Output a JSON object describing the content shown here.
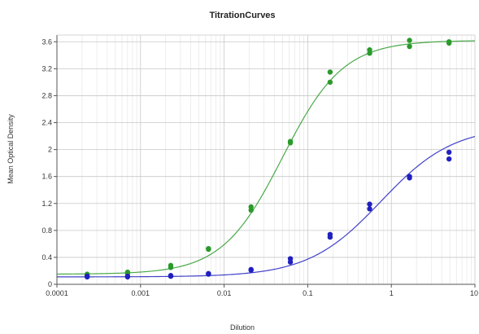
{
  "chart_data": {
    "type": "scatter",
    "title": "TitrationCurves",
    "xlabel": "Dilution",
    "ylabel": "Mean Optical Density",
    "xscale": "log",
    "xlim": [
      0.0001,
      10
    ],
    "ylim": [
      0,
      3.7
    ],
    "x_tick_labels": [
      "0.0001",
      "0.001",
      "0.01",
      "0.1",
      "1",
      "10"
    ],
    "y_tick_labels": [
      "0",
      "0.4",
      "0.8",
      "1.2",
      "1.6",
      "2",
      "2.4",
      "2.8",
      "3.2",
      "3.6"
    ],
    "grid": true,
    "legend": "none",
    "series": [
      {
        "color": "#2a9a2a",
        "points": [
          [
            0.00023,
            0.14
          ],
          [
            0.00023,
            0.15
          ],
          [
            0.0007,
            0.16
          ],
          [
            0.0007,
            0.18
          ],
          [
            0.0023,
            0.25
          ],
          [
            0.0023,
            0.28
          ],
          [
            0.0065,
            0.52
          ],
          [
            0.0065,
            0.53
          ],
          [
            0.021,
            1.1
          ],
          [
            0.021,
            1.15
          ],
          [
            0.062,
            2.1
          ],
          [
            0.062,
            2.12
          ],
          [
            0.185,
            3.0
          ],
          [
            0.185,
            3.15
          ],
          [
            0.55,
            3.43
          ],
          [
            0.55,
            3.48
          ],
          [
            1.65,
            3.53
          ],
          [
            1.65,
            3.62
          ],
          [
            4.9,
            3.58
          ],
          [
            4.9,
            3.6
          ]
        ],
        "fit": {
          "bottom": 0.15,
          "top": 3.62,
          "ec50": 0.05,
          "hill": 1.2
        }
      },
      {
        "color": "#2020c0",
        "points": [
          [
            0.00023,
            0.11
          ],
          [
            0.00023,
            0.12
          ],
          [
            0.0007,
            0.11
          ],
          [
            0.0007,
            0.12
          ],
          [
            0.0023,
            0.12
          ],
          [
            0.0023,
            0.13
          ],
          [
            0.0065,
            0.15
          ],
          [
            0.0065,
            0.16
          ],
          [
            0.021,
            0.21
          ],
          [
            0.021,
            0.22
          ],
          [
            0.062,
            0.33
          ],
          [
            0.062,
            0.38
          ],
          [
            0.185,
            0.7
          ],
          [
            0.185,
            0.74
          ],
          [
            0.55,
            1.12
          ],
          [
            0.55,
            1.19
          ],
          [
            1.65,
            1.58
          ],
          [
            1.65,
            1.6
          ],
          [
            4.9,
            1.86
          ],
          [
            4.9,
            1.96
          ]
        ],
        "fit": {
          "bottom": 0.11,
          "top": 2.35,
          "ec50": 0.75,
          "hill": 1.0
        }
      }
    ]
  }
}
